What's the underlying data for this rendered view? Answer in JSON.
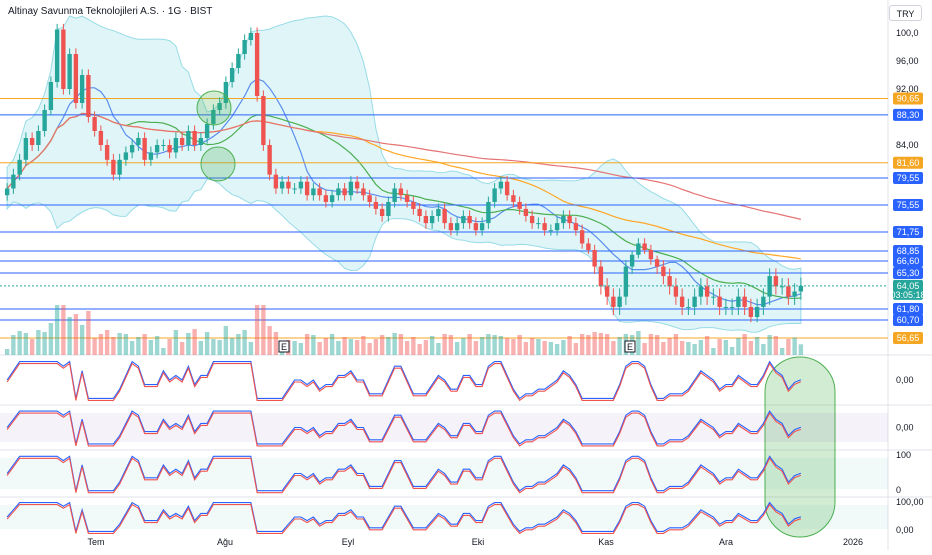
{
  "header": {
    "title": "Altinay Savunma Teknolojileri A.S. · 1G · BIST",
    "currency": "TRY"
  },
  "colors": {
    "up": "#26a69a",
    "down": "#ef5350",
    "orange": "#f5a623",
    "blue": "#2962ff",
    "bb_fill": "#d8f3f7",
    "bb_line": "#7fd3e0",
    "sma_green": "#4caf50",
    "sma_blue": "#5b8def",
    "sma_red": "#e57373",
    "sma_orange": "#ffa726"
  },
  "chart_data": [
    {
      "type": "candlestick",
      "title": "Altinay Savunma Teknolojileri A.S. · 1G · BIST",
      "ylim": [
        56.65,
        100.0
      ],
      "y_ticks": [
        "100,0",
        "96,00",
        "92,00",
        "88,30",
        "84,00",
        "79,55",
        "75,55",
        "71,75",
        "66,60",
        "65,30",
        "60,70"
      ],
      "x_ticks": [
        "Tem",
        "Ağu",
        "Eyl",
        "Eki",
        "Kas",
        "Ara",
        "2026"
      ],
      "horizontal_levels": [
        {
          "value": 90.65,
          "label": "90,65",
          "color": "#f5a623"
        },
        {
          "value": 88.3,
          "label": "88,30",
          "color": "#2962ff"
        },
        {
          "value": 81.6,
          "label": "81,60",
          "color": "#f5a623"
        },
        {
          "value": 79.55,
          "label": "79,55",
          "color": "#2962ff"
        },
        {
          "value": 75.55,
          "label": "75,55",
          "color": "#2962ff"
        },
        {
          "value": 71.75,
          "label": "71,75",
          "color": "#2962ff"
        },
        {
          "value": 68.85,
          "label": "68,85",
          "color": "#2962ff"
        },
        {
          "value": 66.6,
          "label": "66,60",
          "color": "#2962ff"
        },
        {
          "value": 65.3,
          "label": "65,30",
          "color": "#2962ff"
        },
        {
          "value": 61.8,
          "label": "61,80",
          "color": "#2962ff"
        },
        {
          "value": 60.7,
          "label": "60,70",
          "color": "#2962ff"
        },
        {
          "value": 56.65,
          "label": "56,65",
          "color": "#f5a623"
        }
      ],
      "last_price": {
        "value": 64.05,
        "label": "64,05",
        "countdown": "03:05:18"
      },
      "closes": [
        78,
        80,
        82,
        85,
        84,
        86,
        89,
        93,
        100.5,
        92,
        97,
        90,
        94,
        88,
        86,
        84,
        82,
        80,
        82,
        83,
        84,
        85,
        82,
        83,
        84,
        84,
        83,
        85,
        84,
        86,
        84,
        85,
        87,
        89,
        90,
        93,
        95,
        97,
        99,
        100,
        91,
        84,
        80,
        78,
        79,
        78,
        78,
        79,
        77,
        78,
        77,
        76,
        77,
        78,
        77,
        79,
        78,
        77,
        76,
        75,
        74,
        76,
        78,
        77,
        76,
        75,
        74,
        73,
        74,
        75,
        73,
        72,
        73,
        74,
        73,
        72,
        73,
        76,
        78,
        79,
        77,
        76,
        75,
        74,
        73,
        73,
        72,
        72,
        73,
        74,
        73,
        72,
        70,
        69,
        66,
        64,
        63,
        62,
        63,
        66,
        68,
        70,
        69,
        67,
        66,
        65,
        64,
        63,
        62,
        62,
        63,
        64,
        63,
        63,
        62,
        62,
        62,
        63,
        62,
        61,
        62,
        63,
        65,
        64,
        64,
        63,
        63.5,
        64.05
      ],
      "e_markers": [
        "E",
        "E"
      ]
    },
    {
      "type": "line",
      "title": "",
      "y_ticks": [
        "0,00"
      ]
    },
    {
      "type": "line",
      "title": "",
      "y_ticks": [
        "0,00"
      ]
    },
    {
      "type": "line",
      "title": "",
      "y_ticks": [
        "100",
        "0"
      ]
    },
    {
      "type": "line",
      "title": "",
      "y_ticks": [
        "100,00",
        "0,00"
      ]
    }
  ]
}
